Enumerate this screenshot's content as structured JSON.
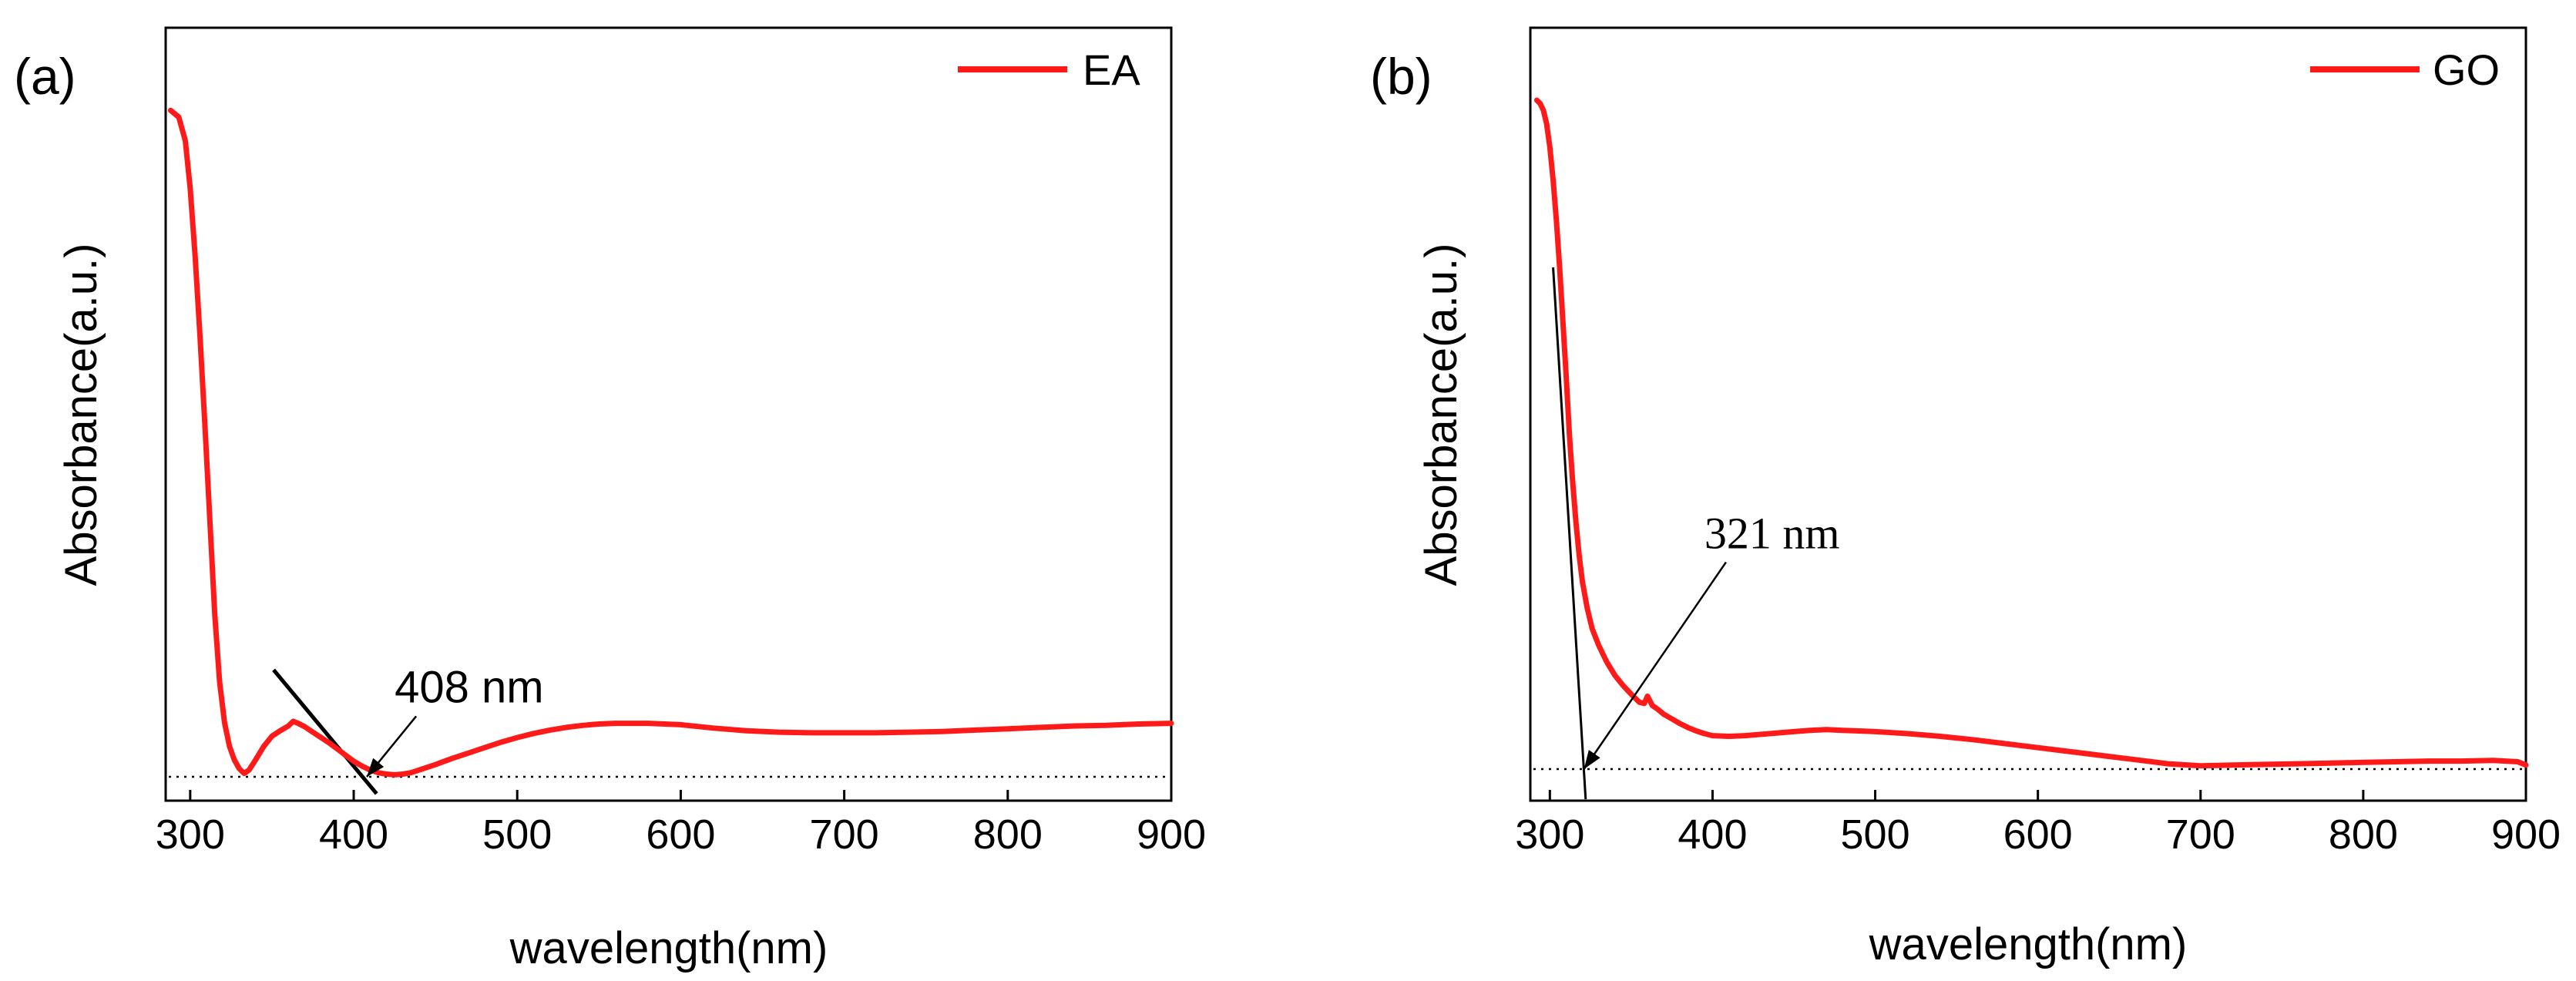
{
  "chart_data": [
    {
      "panel": "(a)",
      "type": "line",
      "title": "",
      "xlabel": "wavelength(nm)",
      "ylabel": "Absorbance(a.u.)",
      "xlim": [
        285,
        900
      ],
      "ylim": [
        0,
        1
      ],
      "xticks": [
        300,
        400,
        500,
        600,
        700,
        800,
        900
      ],
      "legend": {
        "label": "EA",
        "position": "top-right"
      },
      "series": [
        {
          "name": "EA",
          "color": "#ff1a1a",
          "x": [
            288,
            293,
            297,
            300,
            303,
            306,
            309,
            312,
            315,
            318,
            321,
            324,
            327,
            330,
            333,
            336,
            340,
            345,
            350,
            355,
            360,
            363,
            366,
            370,
            375,
            380,
            385,
            390,
            395,
            400,
            405,
            410,
            415,
            420,
            425,
            430,
            435,
            440,
            450,
            460,
            470,
            480,
            490,
            500,
            510,
            520,
            530,
            540,
            550,
            560,
            570,
            580,
            590,
            600,
            620,
            640,
            660,
            680,
            700,
            720,
            740,
            760,
            780,
            800,
            820,
            840,
            860,
            880,
            900
          ],
          "y": [
            0.985,
            0.975,
            0.94,
            0.87,
            0.77,
            0.65,
            0.52,
            0.38,
            0.24,
            0.14,
            0.08,
            0.045,
            0.025,
            0.012,
            0.005,
            0.01,
            0.025,
            0.045,
            0.06,
            0.068,
            0.075,
            0.082,
            0.079,
            0.074,
            0.066,
            0.058,
            0.05,
            0.041,
            0.032,
            0.023,
            0.016,
            0.01,
            0.006,
            0.004,
            0.003,
            0.004,
            0.006,
            0.01,
            0.018,
            0.027,
            0.035,
            0.043,
            0.051,
            0.058,
            0.064,
            0.069,
            0.073,
            0.076,
            0.078,
            0.079,
            0.079,
            0.079,
            0.078,
            0.077,
            0.072,
            0.068,
            0.066,
            0.065,
            0.065,
            0.065,
            0.066,
            0.067,
            0.069,
            0.071,
            0.073,
            0.075,
            0.076,
            0.078,
            0.079
          ]
        }
      ],
      "baseline_y": 0.0,
      "tangent": {
        "x": [
          351,
          414
        ],
        "y": [
          0.158,
          -0.025
        ]
      },
      "annotation": {
        "text": "408 nm",
        "font": "sans",
        "x": 408,
        "y": 0.0,
        "text_x": 425,
        "text_y": 0.11
      }
    },
    {
      "panel": "(b)",
      "type": "line",
      "title": "",
      "xlabel": "wavelength(nm)",
      "ylabel": "Absorbance(a.u.)",
      "xlim": [
        288,
        900
      ],
      "ylim": [
        0,
        1
      ],
      "xticks": [
        300,
        400,
        500,
        600,
        700,
        800,
        900
      ],
      "legend": {
        "label": "GO",
        "position": "top-right"
      },
      "series": [
        {
          "name": "GO",
          "color": "#ff1a1a",
          "x": [
            292,
            294,
            296,
            298,
            300,
            302,
            304,
            306,
            308,
            310,
            312,
            314,
            316,
            318,
            320,
            323,
            326,
            330,
            335,
            340,
            345,
            350,
            355,
            358,
            360,
            363,
            366,
            370,
            375,
            380,
            385,
            390,
            395,
            400,
            410,
            420,
            430,
            440,
            450,
            460,
            470,
            480,
            490,
            500,
            520,
            540,
            560,
            580,
            600,
            620,
            640,
            660,
            680,
            700,
            720,
            740,
            760,
            780,
            800,
            820,
            840,
            860,
            880,
            895,
            900
          ],
          "y": [
            1.0,
            0.995,
            0.985,
            0.965,
            0.93,
            0.88,
            0.82,
            0.75,
            0.67,
            0.59,
            0.5,
            0.43,
            0.37,
            0.32,
            0.28,
            0.24,
            0.21,
            0.185,
            0.16,
            0.14,
            0.125,
            0.112,
            0.1,
            0.098,
            0.109,
            0.095,
            0.09,
            0.082,
            0.075,
            0.068,
            0.062,
            0.057,
            0.053,
            0.05,
            0.049,
            0.05,
            0.052,
            0.054,
            0.056,
            0.058,
            0.059,
            0.058,
            0.057,
            0.056,
            0.053,
            0.049,
            0.044,
            0.038,
            0.032,
            0.026,
            0.02,
            0.014,
            0.008,
            0.005,
            0.006,
            0.007,
            0.008,
            0.009,
            0.01,
            0.011,
            0.012,
            0.012,
            0.013,
            0.011,
            0.006
          ]
        }
      ],
      "baseline_y": 0.0,
      "tangent": {
        "x": [
          302,
          322
        ],
        "y": [
          0.75,
          -0.045
        ]
      },
      "annotation": {
        "text": "321 nm",
        "font": "serif",
        "x": 321,
        "y": 0.0,
        "text_x": 395,
        "text_y": 0.33
      }
    }
  ]
}
